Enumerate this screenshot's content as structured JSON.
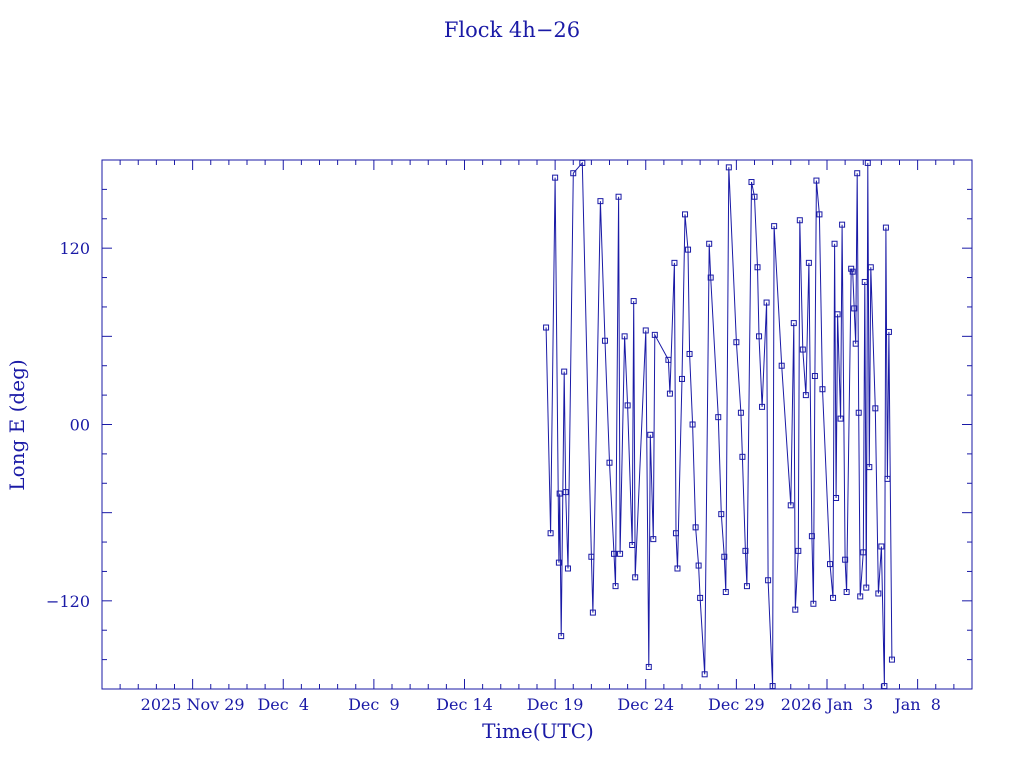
{
  "chart_data": {
    "type": "line",
    "title": "Flock 4h−26",
    "xlabel": "Time(UTC)",
    "ylabel": "Long E (deg)",
    "color": "#1a1aa6",
    "xlim": [
      "2025-11-24",
      "2026-01-11"
    ],
    "ylim": [
      -180,
      180
    ],
    "x_ticks": [
      "2025 Nov 29",
      "Dec  4",
      "Dec  9",
      "Dec 14",
      "Dec 19",
      "Dec 24",
      "Dec 29",
      "2026 Jan  3",
      "Jan  8"
    ],
    "y_ticks": [
      "−120",
      "00",
      "120"
    ],
    "y_tick_values": [
      -120,
      0,
      120
    ],
    "grid": false,
    "series": [
      {
        "marker": "square",
        "points": [
          {
            "t": "2025-12-18T12:00",
            "lon": 66
          },
          {
            "t": "2025-12-18T18:00",
            "lon": -74
          },
          {
            "t": "2025-12-19T00:00",
            "lon": 168
          },
          {
            "t": "2025-12-19T05:00",
            "lon": -94
          },
          {
            "t": "2025-12-19T06:00",
            "lon": -47
          },
          {
            "t": "2025-12-19T08:00",
            "lon": -144
          },
          {
            "t": "2025-12-19T12:00",
            "lon": 36
          },
          {
            "t": "2025-12-19T14:00",
            "lon": -46
          },
          {
            "t": "2025-12-19T17:00",
            "lon": -98
          },
          {
            "t": "2025-12-20T00:00",
            "lon": 171
          },
          {
            "t": "2025-12-20T12:00",
            "lon": 178
          },
          {
            "t": "2025-12-21T00:00",
            "lon": -90
          },
          {
            "t": "2025-12-21T02:00",
            "lon": -128
          },
          {
            "t": "2025-12-21T12:00",
            "lon": 152
          },
          {
            "t": "2025-12-21T18:00",
            "lon": 57
          },
          {
            "t": "2025-12-22T00:00",
            "lon": -26
          },
          {
            "t": "2025-12-22T06:00",
            "lon": -88
          },
          {
            "t": "2025-12-22T08:00",
            "lon": -110
          },
          {
            "t": "2025-12-22T12:00",
            "lon": 155
          },
          {
            "t": "2025-12-22T14:00",
            "lon": -88
          },
          {
            "t": "2025-12-22T20:00",
            "lon": 60
          },
          {
            "t": "2025-12-23T00:00",
            "lon": 13
          },
          {
            "t": "2025-12-23T06:00",
            "lon": -82
          },
          {
            "t": "2025-12-23T08:00",
            "lon": 84
          },
          {
            "t": "2025-12-23T10:00",
            "lon": -104
          },
          {
            "t": "2025-12-24T00:00",
            "lon": 64
          },
          {
            "t": "2025-12-24T04:00",
            "lon": -165
          },
          {
            "t": "2025-12-24T06:00",
            "lon": -7
          },
          {
            "t": "2025-12-24T10:00",
            "lon": -78
          },
          {
            "t": "2025-12-24T12:00",
            "lon": 61
          },
          {
            "t": "2025-12-25T06:00",
            "lon": 44
          },
          {
            "t": "2025-12-25T08:00",
            "lon": 21
          },
          {
            "t": "2025-12-25T14:00",
            "lon": 110
          },
          {
            "t": "2025-12-25T16:00",
            "lon": -74
          },
          {
            "t": "2025-12-25T18:00",
            "lon": -98
          },
          {
            "t": "2025-12-26T00:00",
            "lon": 31
          },
          {
            "t": "2025-12-26T04:00",
            "lon": 143
          },
          {
            "t": "2025-12-26T08:00",
            "lon": 119
          },
          {
            "t": "2025-12-26T10:00",
            "lon": 48
          },
          {
            "t": "2025-12-26T14:00",
            "lon": 0
          },
          {
            "t": "2025-12-26T18:00",
            "lon": -70
          },
          {
            "t": "2025-12-26T22:00",
            "lon": -96
          },
          {
            "t": "2025-12-27T00:00",
            "lon": -118
          },
          {
            "t": "2025-12-27T06:00",
            "lon": -170
          },
          {
            "t": "2025-12-27T12:00",
            "lon": 123
          },
          {
            "t": "2025-12-27T14:00",
            "lon": 100
          },
          {
            "t": "2025-12-28T00:00",
            "lon": 5
          },
          {
            "t": "2025-12-28T04:00",
            "lon": -61
          },
          {
            "t": "2025-12-28T08:00",
            "lon": -90
          },
          {
            "t": "2025-12-28T10:00",
            "lon": -114
          },
          {
            "t": "2025-12-28T14:00",
            "lon": 175
          },
          {
            "t": "2025-12-29T00:00",
            "lon": 56
          },
          {
            "t": "2025-12-29T06:00",
            "lon": 8
          },
          {
            "t": "2025-12-29T08:00",
            "lon": -22
          },
          {
            "t": "2025-12-29T12:00",
            "lon": -86
          },
          {
            "t": "2025-12-29T14:00",
            "lon": -110
          },
          {
            "t": "2025-12-29T20:00",
            "lon": 165
          },
          {
            "t": "2025-12-30T00:00",
            "lon": 155
          },
          {
            "t": "2025-12-30T04:00",
            "lon": 107
          },
          {
            "t": "2025-12-30T06:00",
            "lon": 60
          },
          {
            "t": "2025-12-30T10:00",
            "lon": 12
          },
          {
            "t": "2025-12-30T16:00",
            "lon": 83
          },
          {
            "t": "2025-12-30T18:00",
            "lon": -106
          },
          {
            "t": "2025-12-31T00:00",
            "lon": -178
          },
          {
            "t": "2025-12-31T02:00",
            "lon": 135
          },
          {
            "t": "2025-12-31T12:00",
            "lon": 40
          },
          {
            "t": "2026-01-01T00:00",
            "lon": -55
          },
          {
            "t": "2026-01-01T04:00",
            "lon": 69
          },
          {
            "t": "2026-01-01T06:00",
            "lon": -126
          },
          {
            "t": "2026-01-01T10:00",
            "lon": -86
          },
          {
            "t": "2026-01-01T12:00",
            "lon": 139
          },
          {
            "t": "2026-01-01T16:00",
            "lon": 51
          },
          {
            "t": "2026-01-01T20:00",
            "lon": 20
          },
          {
            "t": "2026-01-02T00:00",
            "lon": 110
          },
          {
            "t": "2026-01-02T04:00",
            "lon": -76
          },
          {
            "t": "2026-01-02T06:00",
            "lon": -122
          },
          {
            "t": "2026-01-02T08:00",
            "lon": 33
          },
          {
            "t": "2026-01-02T10:00",
            "lon": 166
          },
          {
            "t": "2026-01-02T14:00",
            "lon": 143
          },
          {
            "t": "2026-01-02T18:00",
            "lon": 24
          },
          {
            "t": "2026-01-03T04:00",
            "lon": -95
          },
          {
            "t": "2026-01-03T08:00",
            "lon": -118
          },
          {
            "t": "2026-01-03T10:00",
            "lon": 123
          },
          {
            "t": "2026-01-03T12:00",
            "lon": -50
          },
          {
            "t": "2026-01-03T14:00",
            "lon": 75
          },
          {
            "t": "2026-01-03T18:00",
            "lon": 4
          },
          {
            "t": "2026-01-03T20:00",
            "lon": 136
          },
          {
            "t": "2026-01-04T00:00",
            "lon": -92
          },
          {
            "t": "2026-01-04T02:00",
            "lon": -114
          },
          {
            "t": "2026-01-04T08:00",
            "lon": 106
          },
          {
            "t": "2026-01-04T10:00",
            "lon": 104
          },
          {
            "t": "2026-01-04T12:00",
            "lon": 79
          },
          {
            "t": "2026-01-04T14:00",
            "lon": 55
          },
          {
            "t": "2026-01-04T16:00",
            "lon": 171
          },
          {
            "t": "2026-01-04T18:00",
            "lon": 8
          },
          {
            "t": "2026-01-04T20:00",
            "lon": -117
          },
          {
            "t": "2026-01-05T00:00",
            "lon": -87
          },
          {
            "t": "2026-01-05T02:00",
            "lon": 97
          },
          {
            "t": "2026-01-05T04:00",
            "lon": -111
          },
          {
            "t": "2026-01-05T06:00",
            "lon": 178
          },
          {
            "t": "2026-01-05T08:00",
            "lon": -29
          },
          {
            "t": "2026-01-05T10:00",
            "lon": 107
          },
          {
            "t": "2026-01-05T16:00",
            "lon": 11
          },
          {
            "t": "2026-01-05T20:00",
            "lon": -115
          },
          {
            "t": "2026-01-06T00:00",
            "lon": -83
          },
          {
            "t": "2026-01-06T04:00",
            "lon": -178
          },
          {
            "t": "2026-01-06T06:00",
            "lon": 134
          },
          {
            "t": "2026-01-06T08:00",
            "lon": -37
          },
          {
            "t": "2026-01-06T10:00",
            "lon": 63
          },
          {
            "t": "2026-01-06T14:00",
            "lon": -160
          }
        ]
      }
    ]
  }
}
